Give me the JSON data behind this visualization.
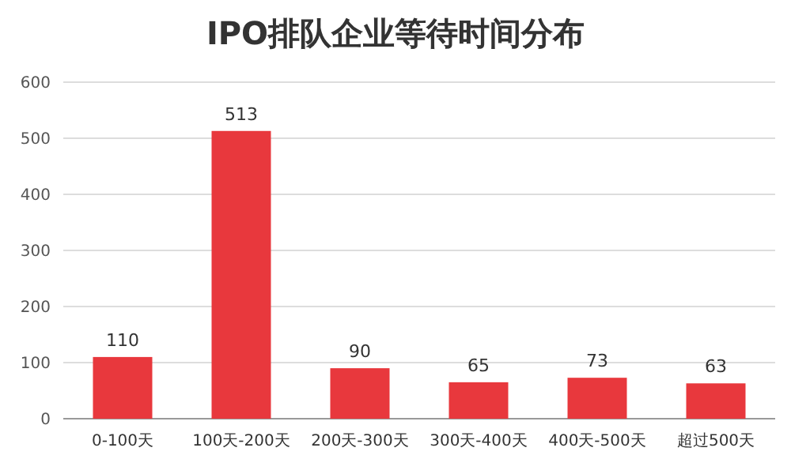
{
  "chart_data": {
    "type": "bar",
    "title": "IPO排队企业等待时间分布",
    "categories": [
      "0-100天",
      "100天-200天",
      "200天-300天",
      "300天-400天",
      "400天-500天",
      "超过500天"
    ],
    "values": [
      110,
      513,
      90,
      65,
      73,
      63
    ],
    "color": "#e8383d",
    "ylim": [
      0,
      600
    ],
    "yticks": [
      0,
      100,
      200,
      300,
      400,
      500,
      600
    ],
    "grid": "y",
    "data_labels": true
  }
}
